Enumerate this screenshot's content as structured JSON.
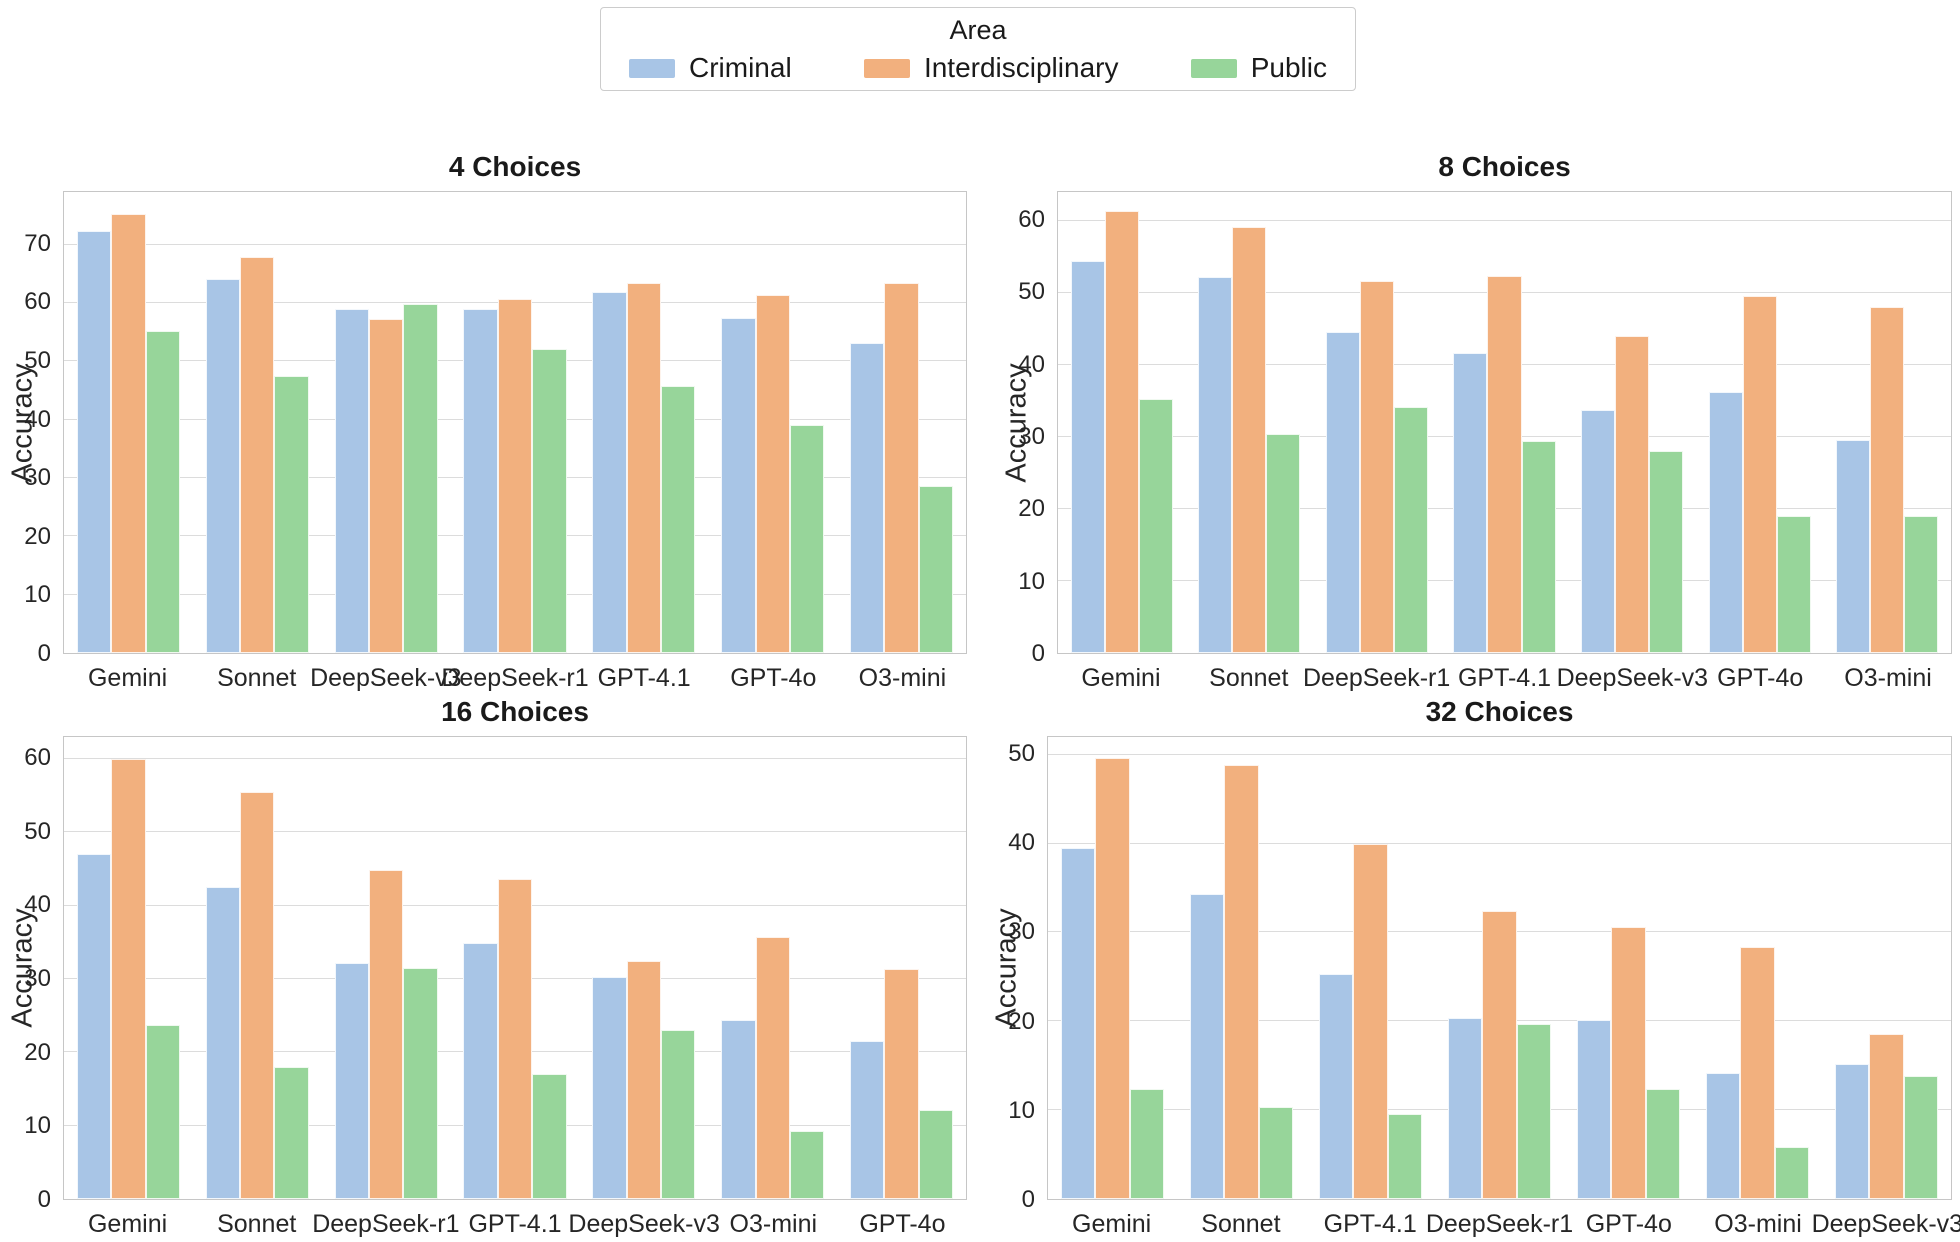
{
  "legend": {
    "title": "Area",
    "entries": [
      {
        "label": "Criminal",
        "color": "#a8c5e6"
      },
      {
        "label": "Interdisciplinary",
        "color": "#f2b07e"
      },
      {
        "label": "Public",
        "color": "#97d59a"
      }
    ]
  },
  "chart_data": [
    {
      "type": "bar",
      "title": "4 Choices",
      "ylabel": "Accuracy",
      "ylim": [
        0,
        79
      ],
      "yticks": [
        0,
        10,
        20,
        30,
        40,
        50,
        60,
        70
      ],
      "grid": true,
      "legend_position": "top-center-shared",
      "categories": [
        "Gemini",
        "Sonnet",
        "DeepSeek-v3",
        "DeepSeek-r1",
        "GPT-4.1",
        "GPT-4o",
        "O3-mini"
      ],
      "series": [
        {
          "name": "Criminal",
          "values": [
            72.3,
            64.1,
            58.9,
            58.9,
            61.9,
            57.4,
            53.1
          ]
        },
        {
          "name": "Interdisciplinary",
          "values": [
            75.3,
            67.8,
            57.2,
            60.6,
            63.4,
            61.3,
            63.4
          ]
        },
        {
          "name": "Public",
          "values": [
            55.2,
            47.5,
            59.8,
            52.1,
            45.7,
            39.0,
            28.6
          ]
        }
      ]
    },
    {
      "type": "bar",
      "title": "8 Choices",
      "ylabel": "Accuracy",
      "ylim": [
        0,
        64
      ],
      "yticks": [
        0,
        10,
        20,
        30,
        40,
        50,
        60
      ],
      "grid": true,
      "categories": [
        "Gemini",
        "Sonnet",
        "DeepSeek-r1",
        "GPT-4.1",
        "DeepSeek-v3",
        "GPT-4o",
        "O3-mini"
      ],
      "series": [
        {
          "name": "Criminal",
          "values": [
            54.4,
            52.2,
            44.5,
            41.7,
            33.7,
            36.3,
            29.6
          ]
        },
        {
          "name": "Interdisciplinary",
          "values": [
            61.3,
            59.1,
            51.7,
            52.4,
            44.0,
            49.6,
            48.0
          ]
        },
        {
          "name": "Public",
          "values": [
            35.2,
            30.4,
            34.1,
            29.4,
            28.1,
            19.0,
            19.0
          ]
        }
      ]
    },
    {
      "type": "bar",
      "title": "16 Choices",
      "ylabel": "Accuracy",
      "ylim": [
        0,
        63
      ],
      "yticks": [
        0,
        10,
        20,
        30,
        40,
        50,
        60
      ],
      "grid": true,
      "categories": [
        "Gemini",
        "Sonnet",
        "DeepSeek-r1",
        "GPT-4.1",
        "DeepSeek-v3",
        "O3-mini",
        "GPT-4o"
      ],
      "series": [
        {
          "name": "Criminal",
          "values": [
            47.0,
            42.5,
            32.2,
            34.9,
            30.3,
            24.4,
            21.5
          ]
        },
        {
          "name": "Interdisciplinary",
          "values": [
            60.0,
            55.5,
            44.8,
            43.7,
            32.4,
            35.7,
            31.3
          ]
        },
        {
          "name": "Public",
          "values": [
            23.7,
            18.0,
            31.5,
            17.1,
            23.0,
            9.3,
            12.1
          ]
        }
      ]
    },
    {
      "type": "bar",
      "title": "32 Choices",
      "ylabel": "Accuracy",
      "ylim": [
        0,
        52
      ],
      "yticks": [
        0,
        10,
        20,
        30,
        40,
        50
      ],
      "grid": true,
      "categories": [
        "Gemini",
        "Sonnet",
        "GPT-4.1",
        "DeepSeek-r1",
        "GPT-4o",
        "O3-mini",
        "DeepSeek-v3"
      ],
      "series": [
        {
          "name": "Criminal",
          "values": [
            39.5,
            34.3,
            25.3,
            20.4,
            20.1,
            14.2,
            15.2
          ]
        },
        {
          "name": "Interdisciplinary",
          "values": [
            49.6,
            48.8,
            40.0,
            32.4,
            30.6,
            28.4,
            18.6
          ]
        },
        {
          "name": "Public",
          "values": [
            12.4,
            10.4,
            9.6,
            19.7,
            12.4,
            5.8,
            13.8
          ]
        }
      ]
    }
  ]
}
